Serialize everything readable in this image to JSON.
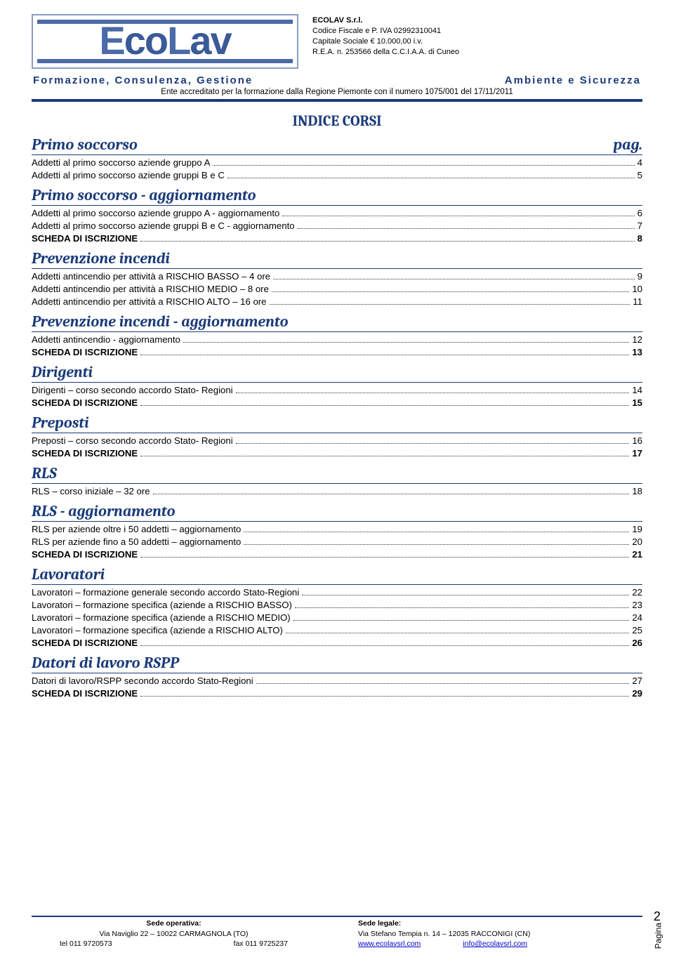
{
  "company": {
    "name": "ECOLAV S.r.l.",
    "lines": [
      "Codice Fiscale e P. IVA 02992310041",
      "Capitale Sociale € 10.000,00 i.v.",
      "R.E.A. n. 253566 della C.C.I.A.A. di Cuneo"
    ]
  },
  "subheader": {
    "left": "Formazione, Consulenza, Gestione",
    "right": "Ambiente e Sicurezza",
    "sub": "Ente accreditato per la formazione dalla Regione Piemonte con il numero 1075/001 del 17/11/2011"
  },
  "indice_title": "INDICE CORSI",
  "pag_label": "pag.",
  "sections": [
    {
      "title": "Primo soccorso",
      "show_pag": true,
      "items": [
        {
          "label": "Addetti al primo soccorso aziende gruppo A",
          "page": "4"
        },
        {
          "label": "Addetti al primo soccorso aziende gruppi B e C",
          "page": "5"
        }
      ]
    },
    {
      "title": "Primo soccorso - aggiornamento",
      "items": [
        {
          "label": "Addetti al primo soccorso aziende gruppo A - aggiornamento",
          "page": "6"
        },
        {
          "label": "Addetti al primo soccorso aziende gruppi B e C - aggiornamento",
          "page": "7"
        },
        {
          "label": "SCHEDA DI ISCRIZIONE",
          "page": "8",
          "bold": true
        }
      ]
    },
    {
      "title": "Prevenzione incendi",
      "items": [
        {
          "label": "Addetti antincendio per attività a RISCHIO BASSO – 4 ore",
          "page": "9"
        },
        {
          "label": "Addetti antincendio per attività a RISCHIO MEDIO – 8 ore",
          "page": "10"
        },
        {
          "label": "Addetti antincendio per attività a RISCHIO ALTO – 16 ore",
          "page": "11"
        }
      ]
    },
    {
      "title": "Prevenzione incendi - aggiornamento",
      "items": [
        {
          "label": "Addetti antincendio - aggiornamento",
          "page": "12"
        },
        {
          "label": "SCHEDA DI ISCRIZIONE",
          "page": "13",
          "bold": true
        }
      ]
    },
    {
      "title": "Dirigenti",
      "items": [
        {
          "label": "Dirigenti – corso secondo accordo Stato- Regioni",
          "page": "14"
        },
        {
          "label": "SCHEDA DI ISCRIZIONE",
          "page": "15",
          "bold": true
        }
      ]
    },
    {
      "title": "Preposti",
      "items": [
        {
          "label": "Preposti – corso secondo accordo Stato- Regioni",
          "page": "16"
        },
        {
          "label": "SCHEDA DI ISCRIZIONE",
          "page": "17",
          "bold": true
        }
      ]
    },
    {
      "title": "RLS",
      "items": [
        {
          "label": "RLS – corso iniziale – 32 ore",
          "page": "18"
        }
      ]
    },
    {
      "title": "RLS - aggiornamento",
      "items": [
        {
          "label": "RLS per aziende oltre i 50 addetti – aggiornamento",
          "page": "19"
        },
        {
          "label": "RLS per aziende fino a 50 addetti – aggiornamento",
          "page": "20"
        },
        {
          "label": "SCHEDA DI ISCRIZIONE",
          "page": "21",
          "bold": true
        }
      ]
    },
    {
      "title": "Lavoratori",
      "items": [
        {
          "label": "Lavoratori – formazione generale secondo accordo Stato-Regioni",
          "page": "22"
        },
        {
          "label": "Lavoratori – formazione specifica (aziende a RISCHIO BASSO)",
          "page": "23"
        },
        {
          "label": "Lavoratori – formazione specifica (aziende a RISCHIO MEDIO)",
          "page": "24"
        },
        {
          "label": "Lavoratori – formazione specifica (aziende a RISCHIO ALTO)",
          "page": "25"
        },
        {
          "label": "SCHEDA DI ISCRIZIONE",
          "page": "26",
          "bold": true
        }
      ]
    },
    {
      "title": "Datori di lavoro RSPP",
      "items": [
        {
          "label": "Datori di lavoro/RSPP secondo accordo Stato-Regioni",
          "page": "27"
        },
        {
          "label": "SCHEDA DI ISCRIZIONE",
          "page": "29",
          "bold": true
        }
      ]
    }
  ],
  "footer": {
    "left": {
      "heading": "Sede operativa:",
      "addr": "Via Naviglio 22 – 10022 CARMAGNOLA (TO)",
      "tel": "tel 011 9720573",
      "fax": "fax 011 9725237"
    },
    "right": {
      "heading": "Sede legale:",
      "addr": "Via Stefano Tempia n. 14 – 12035 RACCONIGI (CN)",
      "site": "www.ecolavsrl.com",
      "email": "info@ecolavsrl.com"
    }
  },
  "page_side": {
    "label": "Pagina",
    "num": "2"
  },
  "colors": {
    "brand": "#1a3b7a",
    "link": "#0000cc"
  }
}
